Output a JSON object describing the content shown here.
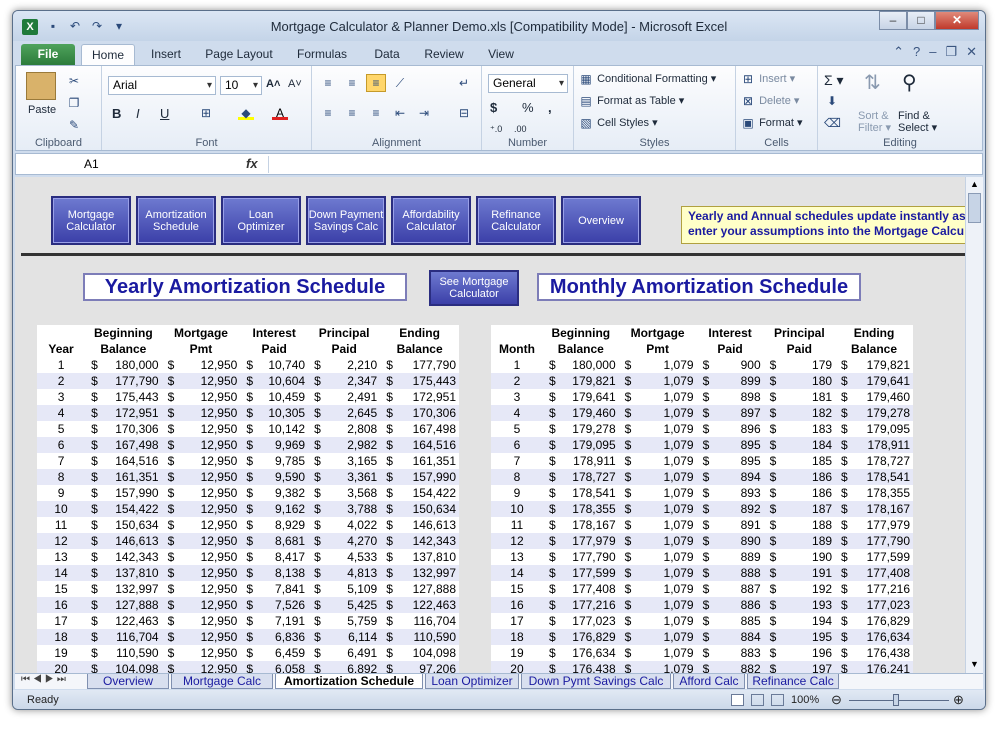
{
  "window": {
    "title": "Mortgage Calculator & Planner Demo.xls  [Compatibility Mode]  -  Microsoft Excel",
    "icon": "X"
  },
  "tabs": {
    "file": "File",
    "home": "Home",
    "insert": "Insert",
    "page_layout": "Page Layout",
    "formulas": "Formulas",
    "data": "Data",
    "review": "Review",
    "view": "View"
  },
  "ribbon": {
    "clipboard": {
      "label": "Clipboard",
      "paste": "Paste"
    },
    "font": {
      "label": "Font",
      "name": "Arial",
      "size": "10"
    },
    "alignment": {
      "label": "Alignment"
    },
    "number": {
      "label": "Number",
      "format": "General",
      "currency": "$",
      "percent": "%",
      "comma": ","
    },
    "styles": {
      "label": "Styles",
      "conditional": "Conditional Formatting",
      "as_table": "Format as Table",
      "cell_styles": "Cell Styles"
    },
    "cells": {
      "label": "Cells",
      "insert": "Insert",
      "delete": "Delete",
      "format": "Format"
    },
    "editing": {
      "label": "Editing",
      "sort1": "Sort &",
      "sort2": "Filter",
      "find1": "Find &",
      "find2": "Select"
    }
  },
  "formula_bar": {
    "cell": "A1",
    "fx": "fx",
    "value": ""
  },
  "nav_buttons": [
    {
      "l1": "Mortgage",
      "l2": "Calculator"
    },
    {
      "l1": "Amortization",
      "l2": "Schedule"
    },
    {
      "l1": "Loan",
      "l2": "Optimizer"
    },
    {
      "l1": "Down Payment",
      "l2": "Savings Calc"
    },
    {
      "l1": "Affordability",
      "l2": "Calculator"
    },
    {
      "l1": "Refinance",
      "l2": "Calculator"
    },
    {
      "l1": "Overview",
      "l2": ""
    }
  ],
  "note": {
    "line1": "Yearly and Annual schedules update instantly as",
    "line2": "enter your assumptions into the Mortgage Calcu"
  },
  "yearly_title": "Yearly Amortization Schedule",
  "monthly_title": "Monthly Amortization Schedule",
  "see_button": {
    "l1": "See Mortgage",
    "l2": "Calculator"
  },
  "yearly": {
    "headers": [
      [
        "",
        "Beginning",
        "Mortgage",
        "Interest",
        "Principal",
        "Ending"
      ],
      [
        "Year",
        "Balance",
        "Pmt",
        "Paid",
        "Paid",
        "Balance"
      ]
    ],
    "rows": [
      [
        "1",
        "180,000",
        "12,950",
        "10,740",
        "2,210",
        "177,790"
      ],
      [
        "2",
        "177,790",
        "12,950",
        "10,604",
        "2,347",
        "175,443"
      ],
      [
        "3",
        "175,443",
        "12,950",
        "10,459",
        "2,491",
        "172,951"
      ],
      [
        "4",
        "172,951",
        "12,950",
        "10,305",
        "2,645",
        "170,306"
      ],
      [
        "5",
        "170,306",
        "12,950",
        "10,142",
        "2,808",
        "167,498"
      ],
      [
        "6",
        "167,498",
        "12,950",
        "9,969",
        "2,982",
        "164,516"
      ],
      [
        "7",
        "164,516",
        "12,950",
        "9,785",
        "3,165",
        "161,351"
      ],
      [
        "8",
        "161,351",
        "12,950",
        "9,590",
        "3,361",
        "157,990"
      ],
      [
        "9",
        "157,990",
        "12,950",
        "9,382",
        "3,568",
        "154,422"
      ],
      [
        "10",
        "154,422",
        "12,950",
        "9,162",
        "3,788",
        "150,634"
      ],
      [
        "11",
        "150,634",
        "12,950",
        "8,929",
        "4,022",
        "146,613"
      ],
      [
        "12",
        "146,613",
        "12,950",
        "8,681",
        "4,270",
        "142,343"
      ],
      [
        "13",
        "142,343",
        "12,950",
        "8,417",
        "4,533",
        "137,810"
      ],
      [
        "14",
        "137,810",
        "12,950",
        "8,138",
        "4,813",
        "132,997"
      ],
      [
        "15",
        "132,997",
        "12,950",
        "7,841",
        "5,109",
        "127,888"
      ],
      [
        "16",
        "127,888",
        "12,950",
        "7,526",
        "5,425",
        "122,463"
      ],
      [
        "17",
        "122,463",
        "12,950",
        "7,191",
        "5,759",
        "116,704"
      ],
      [
        "18",
        "116,704",
        "12,950",
        "6,836",
        "6,114",
        "110,590"
      ],
      [
        "19",
        "110,590",
        "12,950",
        "6,459",
        "6,491",
        "104,098"
      ],
      [
        "20",
        "104,098",
        "12,950",
        "6,058",
        "6,892",
        "97,206"
      ]
    ]
  },
  "monthly": {
    "headers": [
      [
        "",
        "Beginning",
        "Mortgage",
        "Interest",
        "Principal",
        "Ending"
      ],
      [
        "Month",
        "Balance",
        "Pmt",
        "Paid",
        "Paid",
        "Balance"
      ]
    ],
    "rows": [
      [
        "1",
        "180,000",
        "1,079",
        "900",
        "179",
        "179,821"
      ],
      [
        "2",
        "179,821",
        "1,079",
        "899",
        "180",
        "179,641"
      ],
      [
        "3",
        "179,641",
        "1,079",
        "898",
        "181",
        "179,460"
      ],
      [
        "4",
        "179,460",
        "1,079",
        "897",
        "182",
        "179,278"
      ],
      [
        "5",
        "179,278",
        "1,079",
        "896",
        "183",
        "179,095"
      ],
      [
        "6",
        "179,095",
        "1,079",
        "895",
        "184",
        "178,911"
      ],
      [
        "7",
        "178,911",
        "1,079",
        "895",
        "185",
        "178,727"
      ],
      [
        "8",
        "178,727",
        "1,079",
        "894",
        "186",
        "178,541"
      ],
      [
        "9",
        "178,541",
        "1,079",
        "893",
        "186",
        "178,355"
      ],
      [
        "10",
        "178,355",
        "1,079",
        "892",
        "187",
        "178,167"
      ],
      [
        "11",
        "178,167",
        "1,079",
        "891",
        "188",
        "177,979"
      ],
      [
        "12",
        "177,979",
        "1,079",
        "890",
        "189",
        "177,790"
      ],
      [
        "13",
        "177,790",
        "1,079",
        "889",
        "190",
        "177,599"
      ],
      [
        "14",
        "177,599",
        "1,079",
        "888",
        "191",
        "177,408"
      ],
      [
        "15",
        "177,408",
        "1,079",
        "887",
        "192",
        "177,216"
      ],
      [
        "16",
        "177,216",
        "1,079",
        "886",
        "193",
        "177,023"
      ],
      [
        "17",
        "177,023",
        "1,079",
        "885",
        "194",
        "176,829"
      ],
      [
        "18",
        "176,829",
        "1,079",
        "884",
        "195",
        "176,634"
      ],
      [
        "19",
        "176,634",
        "1,079",
        "883",
        "196",
        "176,438"
      ],
      [
        "20",
        "176,438",
        "1,079",
        "882",
        "197",
        "176,241"
      ]
    ]
  },
  "currency_symbol": "$",
  "sheet_tabs": [
    "Overview",
    "Mortgage Calc",
    "Amortization Schedule",
    "Loan Optimizer",
    "Down Pymt Savings Calc",
    "Afford Calc",
    "Refinance Calc"
  ],
  "active_sheet_tab": 2,
  "status": {
    "ready": "Ready",
    "zoom": "100%"
  }
}
